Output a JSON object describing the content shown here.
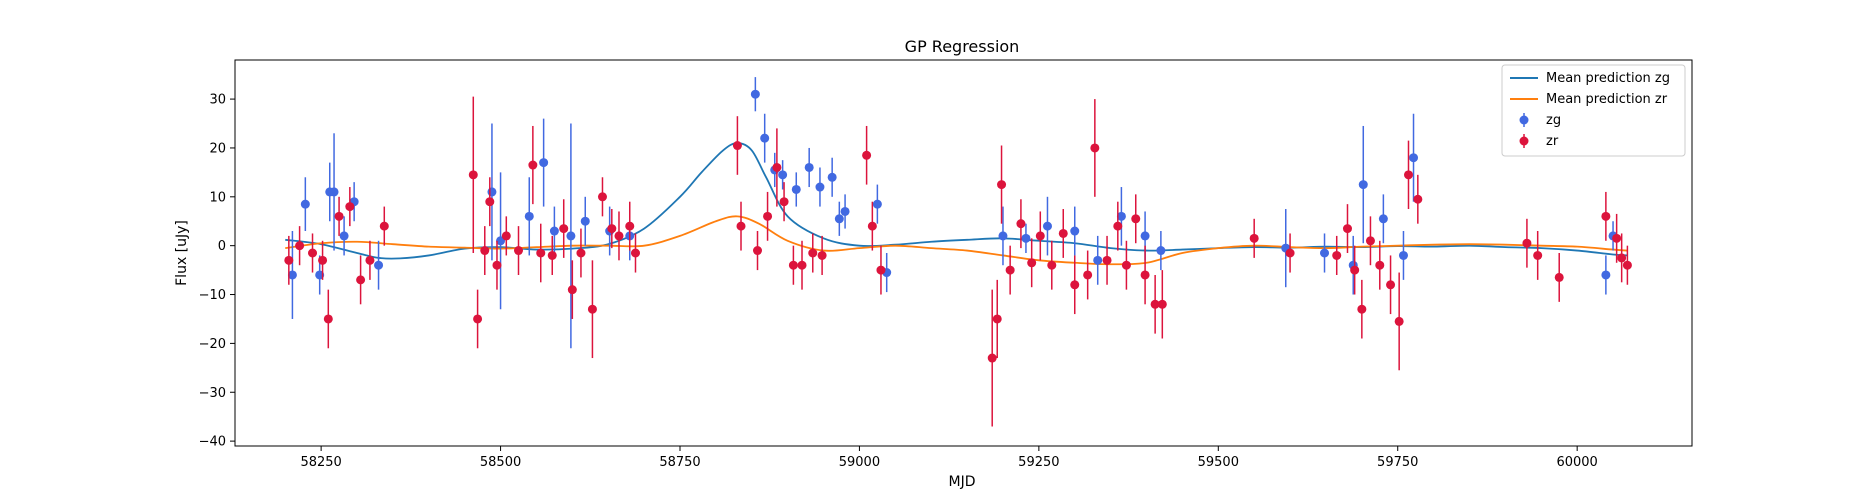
{
  "chart_data": {
    "type": "scatter",
    "title": "GP Regression",
    "xlabel": "MJD",
    "ylabel": "Flux [uJy]",
    "xlim": [
      58130,
      60160
    ],
    "ylim": [
      -41,
      38
    ],
    "xticks": [
      58250,
      58500,
      58750,
      59000,
      59250,
      59500,
      59750,
      60000
    ],
    "yticks": [
      -40,
      -30,
      -20,
      -10,
      0,
      10,
      20,
      30
    ],
    "grid": false,
    "legend": {
      "placement": "top-right",
      "entries": [
        "Mean prediction zg",
        "Mean prediction zr",
        "zg",
        "zr"
      ]
    },
    "colors": {
      "zg_line": "#1f77b4",
      "zr_line": "#ff7f0e",
      "zg_points": "#4169e1",
      "zr_points": "#dc143c"
    },
    "lines": [
      {
        "name": "Mean prediction zg",
        "x": [
          58200,
          58250,
          58300,
          58330,
          58360,
          58400,
          58450,
          58500,
          58550,
          58600,
          58650,
          58700,
          58750,
          58780,
          58810,
          58830,
          58850,
          58870,
          58900,
          58950,
          59000,
          59050,
          59100,
          59150,
          59200,
          59250,
          59300,
          59350,
          59400,
          59450,
          59500,
          59550,
          59600,
          59650,
          59700,
          59750,
          59800,
          59850,
          59900,
          59950,
          60000,
          60050,
          60070
        ],
        "y": [
          1.2,
          0.3,
          -1.5,
          -2.5,
          -2.6,
          -2.0,
          -0.6,
          -0.3,
          -0.8,
          -0.6,
          0.3,
          3.5,
          10.0,
          15.0,
          19.5,
          21.0,
          19.5,
          14.0,
          6.0,
          1.5,
          0.0,
          0.2,
          0.8,
          1.2,
          1.5,
          1.0,
          0.5,
          -0.5,
          -1.0,
          -0.8,
          -0.5,
          -0.3,
          -0.4,
          -0.2,
          -0.3,
          -0.1,
          -0.2,
          0.0,
          -0.3,
          -0.5,
          -1.0,
          -1.8,
          -2.0
        ]
      },
      {
        "name": "Mean prediction zr",
        "x": [
          58200,
          58250,
          58300,
          58350,
          58400,
          58450,
          58500,
          58550,
          58600,
          58650,
          58700,
          58750,
          58800,
          58830,
          58860,
          58900,
          58950,
          59000,
          59050,
          59100,
          59150,
          59200,
          59250,
          59300,
          59350,
          59400,
          59450,
          59500,
          59550,
          59600,
          59650,
          59700,
          59750,
          59800,
          59850,
          59900,
          59950,
          60000,
          60050,
          60070
        ],
        "y": [
          -0.5,
          0.5,
          0.8,
          0.3,
          -0.2,
          -0.4,
          -0.6,
          -0.3,
          0.0,
          0.0,
          0.0,
          2.0,
          5.0,
          6.0,
          4.5,
          1.0,
          -1.0,
          -0.5,
          0.0,
          -0.5,
          -1.0,
          -2.0,
          -3.0,
          -3.5,
          -3.8,
          -3.5,
          -1.5,
          -0.5,
          0.0,
          -0.3,
          -0.5,
          -0.2,
          0.0,
          0.2,
          0.3,
          0.2,
          0.0,
          -0.2,
          -0.8,
          -1.0
        ]
      }
    ],
    "series": [
      {
        "name": "zg",
        "x": [
          58210,
          58228,
          58248,
          58262,
          58268,
          58282,
          58296,
          58330,
          58488,
          58500,
          58540,
          58560,
          58575,
          58598,
          58618,
          58652,
          58680,
          58855,
          58868,
          58882,
          58893,
          58912,
          58930,
          58945,
          58962,
          58972,
          58980,
          59025,
          59038,
          59200,
          59232,
          59262,
          59300,
          59332,
          59365,
          59398,
          59420,
          59594,
          59648,
          59688,
          59702,
          59730,
          59758,
          59772,
          60040,
          60050
        ],
        "y": [
          -6,
          8.5,
          -6,
          11,
          11,
          2,
          9,
          -4,
          11,
          1,
          6,
          17,
          3,
          2,
          5,
          3,
          2,
          31,
          22,
          15.5,
          14.5,
          11.5,
          16,
          12,
          14,
          5.5,
          7,
          8.5,
          -5.5,
          2,
          1.5,
          4,
          3,
          -3,
          6,
          2,
          -1,
          -0.5,
          -1.5,
          -4,
          12.5,
          5.5,
          -2,
          18,
          -6,
          2
        ],
        "err": [
          9,
          5.5,
          4,
          6,
          12,
          4,
          4,
          5,
          14,
          14,
          8,
          9,
          5,
          23,
          5,
          5,
          5,
          3.5,
          5,
          3.5,
          3,
          3.5,
          4,
          4,
          4,
          3.5,
          3.5,
          4,
          4,
          6,
          3,
          6,
          5,
          5,
          6,
          5,
          4,
          8,
          4,
          6,
          12,
          5,
          5,
          9,
          4,
          3
        ]
      },
      {
        "name": "zr",
        "x": [
          58205,
          58220,
          58238,
          58252,
          58260,
          58275,
          58290,
          58305,
          58318,
          58338,
          58462,
          58468,
          58478,
          58485,
          58495,
          58508,
          58525,
          58545,
          58556,
          58572,
          58588,
          58600,
          58612,
          58628,
          58642,
          58655,
          58665,
          58680,
          58688,
          58830,
          58835,
          58858,
          58872,
          58885,
          58895,
          58908,
          58920,
          58935,
          58948,
          59010,
          59018,
          59030,
          59185,
          59192,
          59198,
          59210,
          59225,
          59240,
          59252,
          59268,
          59284,
          59300,
          59318,
          59328,
          59345,
          59360,
          59372,
          59385,
          59398,
          59412,
          59422,
          59550,
          59600,
          59665,
          59680,
          59690,
          59700,
          59712,
          59725,
          59740,
          59752,
          59765,
          59778,
          59930,
          59945,
          59975,
          60040,
          60055,
          60062,
          60070
        ],
        "y": [
          -3,
          0,
          -1.5,
          -3,
          -15,
          6,
          8,
          -7,
          -3,
          4,
          14.5,
          -15,
          -1,
          9,
          -4,
          2,
          -1,
          16.5,
          -1.5,
          -2,
          3.5,
          -9,
          -1.5,
          -13,
          10,
          3.5,
          2,
          4,
          -1.5,
          20.5,
          4,
          -1,
          6,
          16,
          9,
          -4,
          -4,
          -1.5,
          -2,
          18.5,
          4,
          -5,
          -23,
          -15,
          12.5,
          -5,
          4.5,
          -3.5,
          2,
          -4,
          2.5,
          -8,
          -6,
          20,
          -3,
          4,
          -4,
          5.5,
          -6,
          -12,
          -12,
          1.5,
          -1.5,
          -2,
          3.5,
          -5,
          -13,
          1,
          -4,
          -8,
          -15.5,
          14.5,
          9.5,
          0.5,
          -2,
          -6.5,
          6,
          1.5,
          -2.5,
          -4
        ],
        "err": [
          5,
          4,
          4,
          4,
          6,
          4,
          4,
          5,
          4,
          4,
          16,
          6,
          5,
          5,
          5,
          4,
          5,
          8,
          6,
          4,
          6,
          6,
          5,
          10,
          4,
          4,
          5,
          5,
          4,
          6,
          5,
          4,
          5,
          8,
          4,
          4,
          5,
          4,
          4,
          6,
          5,
          5,
          14,
          8,
          8,
          5,
          5,
          5,
          5,
          5,
          5,
          6,
          5,
          10,
          5,
          5,
          5,
          5,
          6,
          6,
          7,
          4,
          4,
          4,
          5,
          5,
          6,
          5,
          5,
          6,
          10,
          7,
          5,
          5,
          5,
          5,
          5,
          5,
          5,
          4
        ]
      }
    ]
  }
}
